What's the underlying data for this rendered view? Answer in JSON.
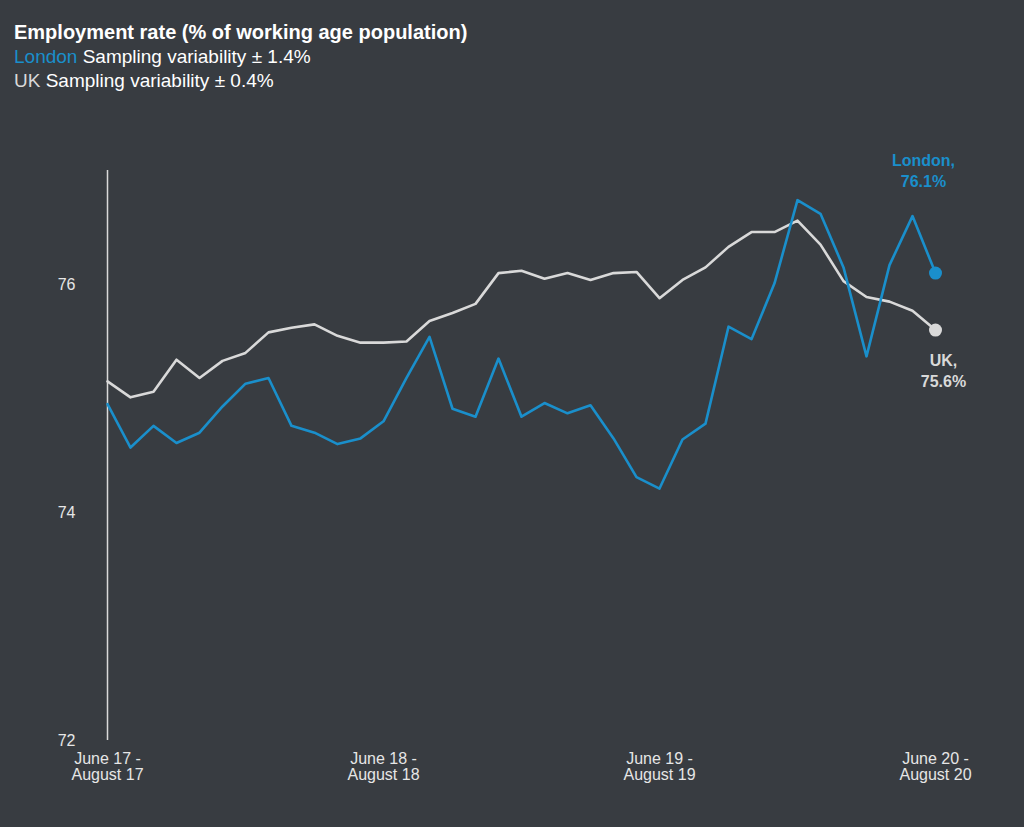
{
  "chart_data": {
    "type": "line",
    "title": "Employment rate (% of working age population)",
    "subtitle": [
      "London Sampling variability ± 1.4%",
      "UK Sampling variability ± 0.4%"
    ],
    "categories": [
      "June 17 - August 17",
      null,
      null,
      null,
      null,
      null,
      null,
      null,
      null,
      null,
      null,
      null,
      "June 18 - August 18",
      null,
      null,
      null,
      null,
      null,
      null,
      null,
      null,
      null,
      null,
      null,
      "June 19 - August 19",
      null,
      null,
      null,
      null,
      null,
      null,
      null,
      null,
      null,
      null,
      null,
      "June 20 - August 20"
    ],
    "series": [
      {
        "name": "UK",
        "color": "#d9d9d9",
        "values": [
          75.15,
          75.01,
          75.06,
          75.34,
          75.18,
          75.33,
          75.4,
          75.58,
          75.62,
          75.65,
          75.55,
          75.49,
          75.49,
          75.5,
          75.68,
          75.75,
          75.83,
          76.1,
          76.12,
          76.05,
          76.1,
          76.04,
          76.1,
          76.11,
          75.88,
          76.04,
          76.15,
          76.33,
          76.46,
          76.46,
          76.56,
          76.35,
          76.03,
          75.89,
          75.85,
          75.77,
          75.6
        ]
      },
      {
        "name": "London",
        "color": "#1a8fcb",
        "values": [
          74.95,
          74.57,
          74.76,
          74.61,
          74.7,
          74.93,
          75.13,
          75.18,
          74.76,
          74.7,
          74.6,
          74.65,
          74.8,
          75.18,
          75.54,
          74.91,
          74.84,
          75.35,
          74.84,
          74.96,
          74.87,
          74.94,
          74.65,
          74.31,
          74.21,
          74.64,
          74.78,
          75.63,
          75.52,
          76.01,
          76.74,
          76.62,
          76.15,
          75.37,
          76.17,
          76.6,
          76.1
        ]
      }
    ],
    "ylim": [
      72,
      77
    ],
    "yticks": [
      72,
      74,
      76
    ],
    "grid": false,
    "annotations": [
      {
        "text": "London, 76.1%",
        "series": "London"
      },
      {
        "text": "UK, 75.6%",
        "series": "UK"
      }
    ]
  }
}
